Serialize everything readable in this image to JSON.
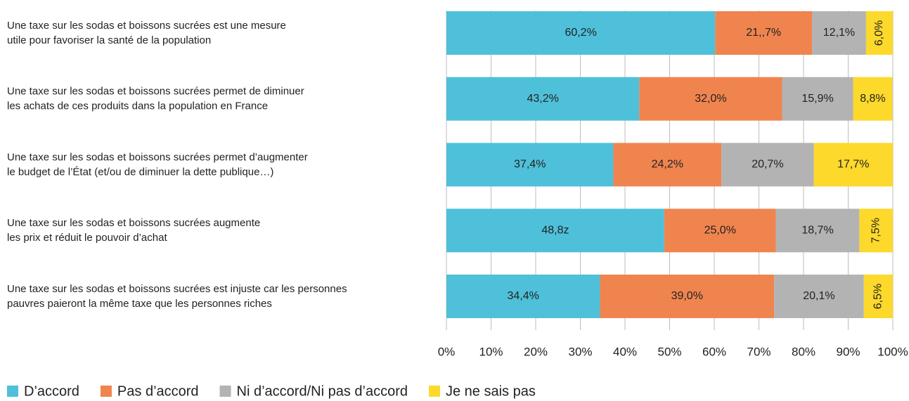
{
  "chart_data": {
    "type": "stacked_barh",
    "categories": [
      [
        "Une taxe sur les sodas et boissons sucrées est une mesure",
        "utile pour favoriser la santé de la population"
      ],
      [
        "Une taxe sur les sodas et boissons sucrées permet de diminuer",
        "les achats de ces produits dans la population en France"
      ],
      [
        "Une taxe sur les sodas et boissons sucrées permet d’augmenter",
        "le budget de l’État (et/ou de diminuer la dette publique…)"
      ],
      [
        "Une taxe sur les sodas et boissons sucrées augmente",
        "les prix et réduit le pouvoir d’achat"
      ],
      [
        "Une taxe sur les sodas et boissons sucrées est injuste car les personnes",
        "pauvres paieront la même taxe que les personnes riches"
      ]
    ],
    "series": [
      {
        "name": "D’accord",
        "color": "#4fc0d9",
        "values": [
          60.2,
          43.2,
          37.4,
          48.8,
          34.4
        ],
        "value_labels": [
          "60,2%",
          "43,2%",
          "37,4%",
          "48,8z",
          "34,4%"
        ]
      },
      {
        "name": "Pas d’accord",
        "color": "#f0844f",
        "values": [
          21.7,
          32.0,
          24.2,
          25.0,
          39.0
        ],
        "value_labels": [
          "21,,7%",
          "32,0%",
          "24,2%",
          "25,0%",
          "39,0%"
        ]
      },
      {
        "name": "Ni d’accord/Ni pas d’accord",
        "color": "#b3b3b3",
        "values": [
          12.1,
          15.9,
          20.7,
          18.7,
          20.1
        ],
        "value_labels": [
          "12,1%",
          "15,9%",
          "20,7%",
          "18,7%",
          "20,1%"
        ]
      },
      {
        "name": "Je ne sais pas",
        "color": "#fcd92a",
        "values": [
          6.0,
          8.8,
          17.7,
          7.5,
          6.5
        ],
        "value_labels": [
          "6,0%",
          "8,8%",
          "17,7%",
          "7,5%",
          "6,5%"
        ]
      }
    ],
    "xlim": [
      0,
      100
    ],
    "xticks": [
      {
        "value": 0,
        "label": "0%"
      },
      {
        "value": 10,
        "label": "10%"
      },
      {
        "value": 20,
        "label": "20%"
      },
      {
        "value": 30,
        "label": "30%"
      },
      {
        "value": 40,
        "label": "40%"
      },
      {
        "value": 50,
        "label": "50%"
      },
      {
        "value": 60,
        "label": "60%"
      },
      {
        "value": 70,
        "label": "70%"
      },
      {
        "value": 80,
        "label": "80%"
      },
      {
        "value": 90,
        "label": "90%"
      },
      {
        "value": 100,
        "label": "100%"
      }
    ],
    "grid": true,
    "legend": "bottom-left"
  }
}
